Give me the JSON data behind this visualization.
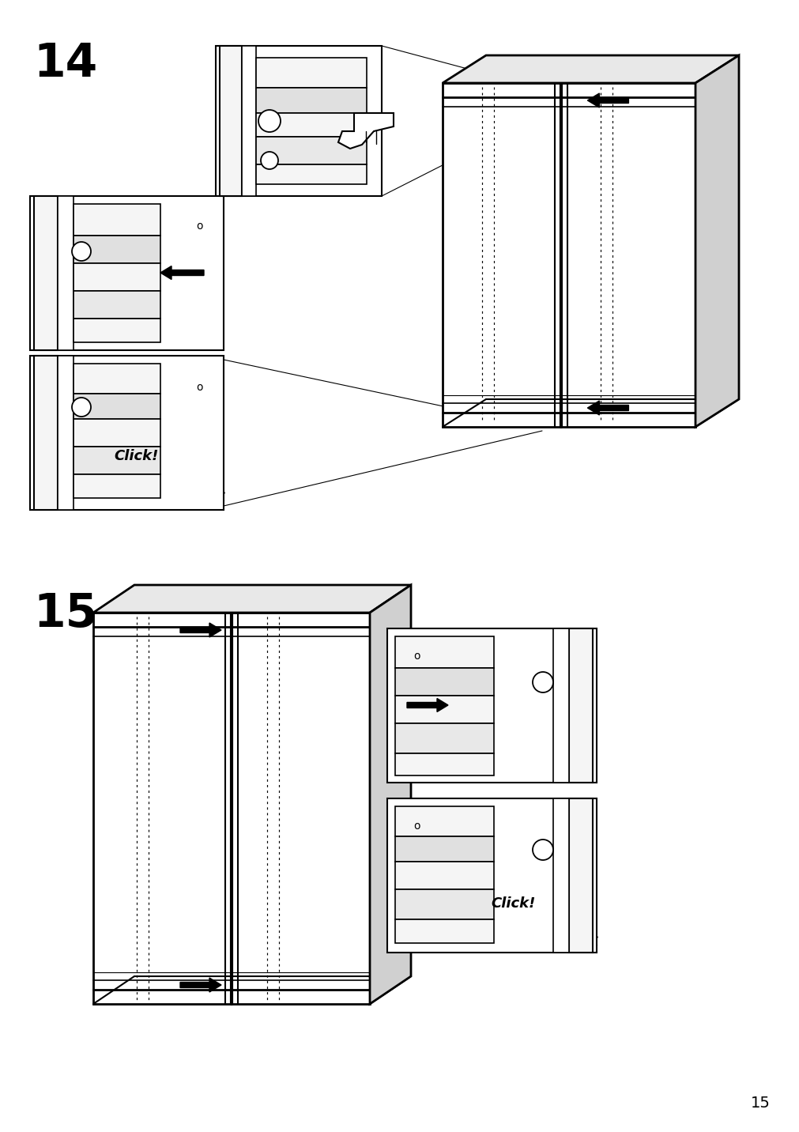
{
  "bg_color": "#ffffff",
  "step14_label": "14",
  "step15_label": "15",
  "page_number": "15",
  "click_text": "Click!",
  "number_fontsize": 42,
  "click_fontsize": 13,
  "page_fontsize": 14,
  "gray_light": "#e8e8e8",
  "gray_mid": "#d0d0d0",
  "gray_dark": "#b0b0b0",
  "gray_panel": "#f5f5f5",
  "gray_rail": "#e0e0e0"
}
